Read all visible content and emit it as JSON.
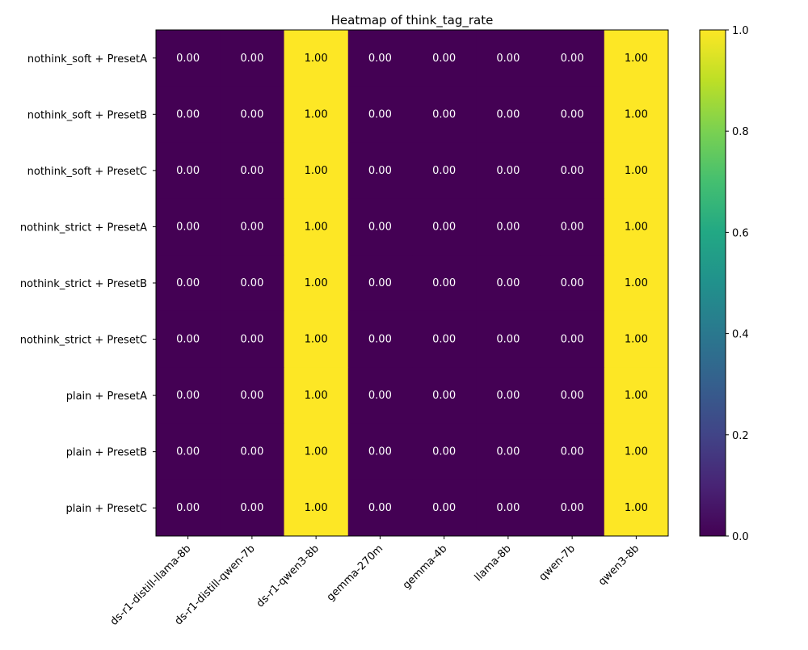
{
  "chart_data": {
    "type": "heatmap",
    "title": "Heatmap of think_tag_rate",
    "xlabel": "",
    "ylabel": "",
    "x_categories": [
      "ds-r1-distill-llama-8b",
      "ds-r1-distill-qwen-7b",
      "ds-r1-qwen3-8b",
      "gemma-270m",
      "gemma-4b",
      "llama-8b",
      "qwen-7b",
      "qwen3-8b"
    ],
    "y_categories": [
      "nothink_soft + PresetA",
      "nothink_soft + PresetB",
      "nothink_soft + PresetC",
      "nothink_strict + PresetA",
      "nothink_strict + PresetB",
      "nothink_strict + PresetC",
      "plain + PresetA",
      "plain + PresetB",
      "plain + PresetC"
    ],
    "values": [
      [
        0,
        0,
        1,
        0,
        0,
        0,
        0,
        1
      ],
      [
        0,
        0,
        1,
        0,
        0,
        0,
        0,
        1
      ],
      [
        0,
        0,
        1,
        0,
        0,
        0,
        0,
        1
      ],
      [
        0,
        0,
        1,
        0,
        0,
        0,
        0,
        1
      ],
      [
        0,
        0,
        1,
        0,
        0,
        0,
        0,
        1
      ],
      [
        0,
        0,
        1,
        0,
        0,
        0,
        0,
        1
      ],
      [
        0,
        0,
        1,
        0,
        0,
        0,
        0,
        1
      ],
      [
        0,
        0,
        1,
        0,
        0,
        0,
        0,
        1
      ],
      [
        0,
        0,
        1,
        0,
        0,
        0,
        0,
        1
      ]
    ],
    "value_format_decimals": 2,
    "colormap": "viridis",
    "colorbar": {
      "range": [
        0.0,
        1.0
      ],
      "ticks": [
        0.0,
        0.2,
        0.4,
        0.6,
        0.8,
        1.0
      ],
      "tick_labels": [
        "0.0",
        "0.2",
        "0.4",
        "0.6",
        "0.8",
        "1.0"
      ]
    },
    "grid": false
  }
}
